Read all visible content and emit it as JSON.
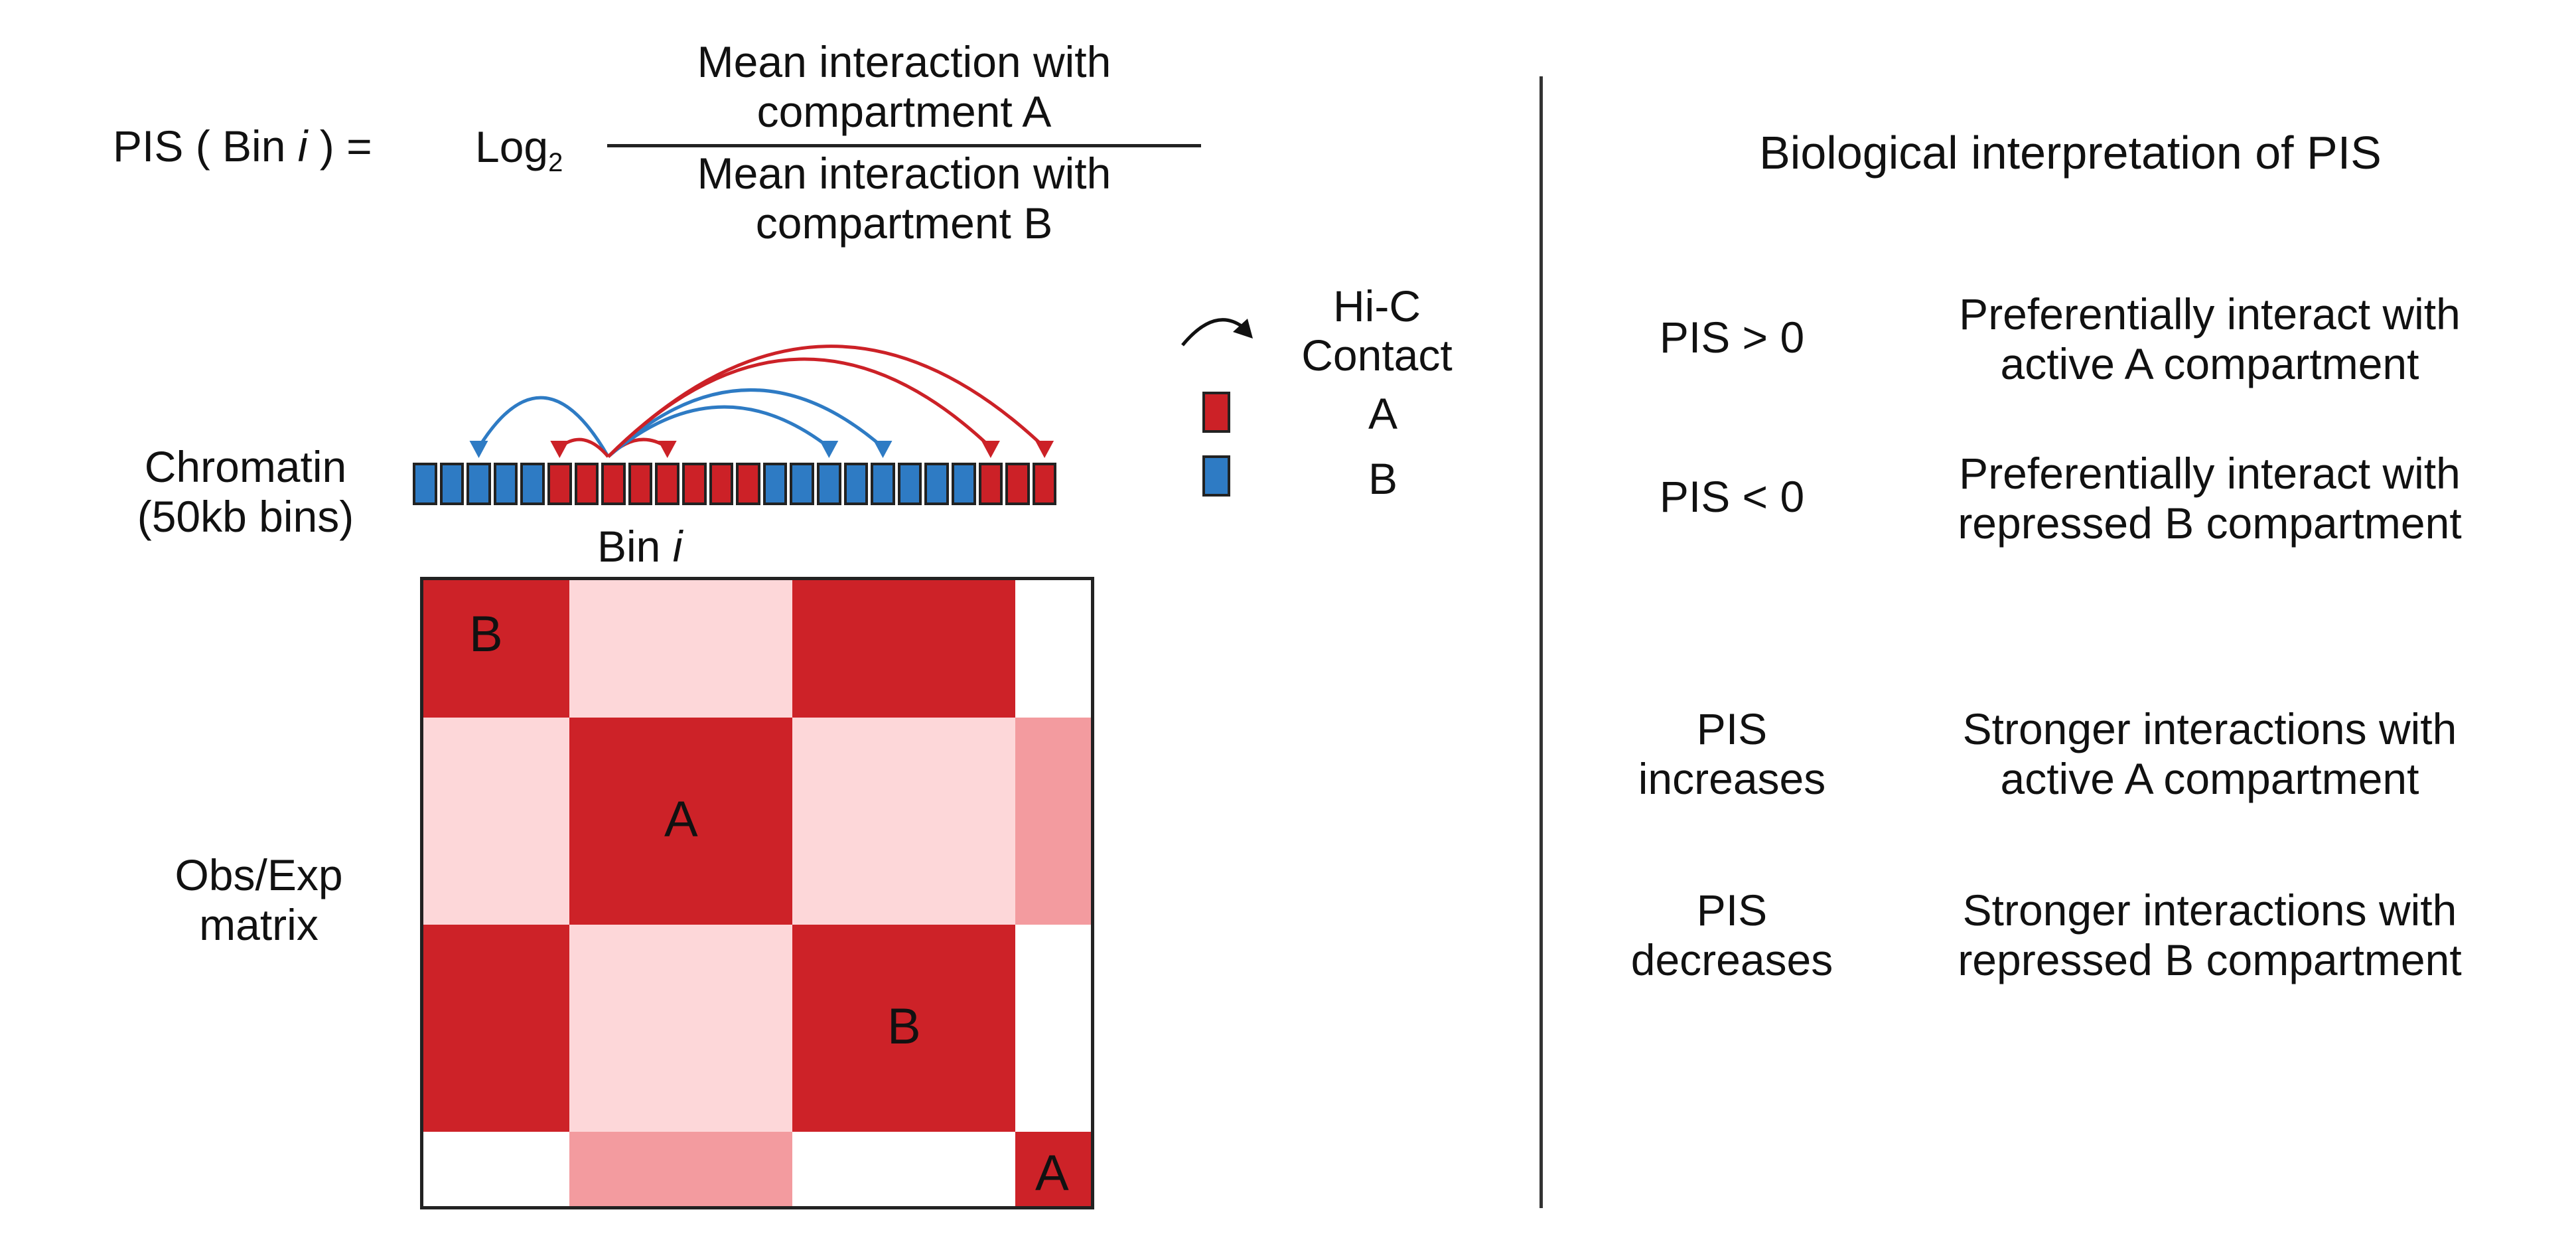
{
  "colors": {
    "compartment_a": "#cc2127",
    "compartment_b": "#2e7bc4",
    "dark_red": "#cd2228",
    "light_pink": "#fdd7d9",
    "medium_pink": "#f39b9f",
    "white": "#ffffff",
    "line": "#222222"
  },
  "formula": {
    "lhs_prefix": "PIS ( Bin ",
    "lhs_var": "i",
    "lhs_suffix": " ) =",
    "log": "Log",
    "log_sub": "2",
    "numerator_line1": "Mean interaction with",
    "numerator_line2": "compartment A",
    "denominator_line1": "Mean interaction with",
    "denominator_line2": "compartment  B"
  },
  "legend": {
    "arrow_icon": "curved-arrow-icon",
    "contact_line1": "Hi-C",
    "contact_line2": "Contact",
    "a_label": "A",
    "b_label": "B"
  },
  "chromatin": {
    "label_line1": "Chromatin",
    "label_line2": "(50kb bins)",
    "bins": [
      "B",
      "B",
      "B",
      "B",
      "B",
      "A",
      "A",
      "A",
      "A",
      "A",
      "A",
      "A",
      "A",
      "B",
      "B",
      "B",
      "B",
      "B",
      "B",
      "B",
      "B",
      "A",
      "A",
      "A"
    ],
    "bin_label_prefix": "Bin ",
    "bin_label_var": "i"
  },
  "matrix": {
    "label_line1": "Obs/Exp",
    "label_line2": "matrix",
    "col_blocks": [
      5,
      7.6,
      7.6,
      2.6
    ],
    "row_blocks": [
      4.8,
      7.2,
      7.2,
      2.6
    ],
    "cells": [
      [
        "dark_red",
        "light_pink",
        "dark_red",
        "white"
      ],
      [
        "light_pink",
        "dark_red",
        "light_pink",
        "medium_pink"
      ],
      [
        "dark_red",
        "light_pink",
        "dark_red",
        "white"
      ],
      [
        "white",
        "medium_pink",
        "white",
        "dark_red"
      ]
    ],
    "cell_labels": [
      {
        "row": 0,
        "col": 0,
        "text": "B"
      },
      {
        "row": 1,
        "col": 1,
        "text": "A"
      },
      {
        "row": 2,
        "col": 2,
        "text": "B"
      },
      {
        "row": 3,
        "col": 3,
        "text": "A"
      }
    ]
  },
  "interpretation": {
    "title": "Biological interpretation of PIS",
    "items": [
      {
        "condition_lines": [
          "PIS > 0"
        ],
        "meaning_lines": [
          "Preferentially interact with",
          "active A compartment"
        ]
      },
      {
        "condition_lines": [
          "PIS < 0"
        ],
        "meaning_lines": [
          "Preferentially interact with",
          "repressed B compartment"
        ]
      },
      {
        "condition_lines": [
          "PIS",
          "increases"
        ],
        "meaning_lines": [
          "Stronger interactions with",
          "active A compartment"
        ]
      },
      {
        "condition_lines": [
          "PIS",
          "decreases"
        ],
        "meaning_lines": [
          "Stronger interactions with",
          "repressed B compartment"
        ]
      }
    ]
  }
}
